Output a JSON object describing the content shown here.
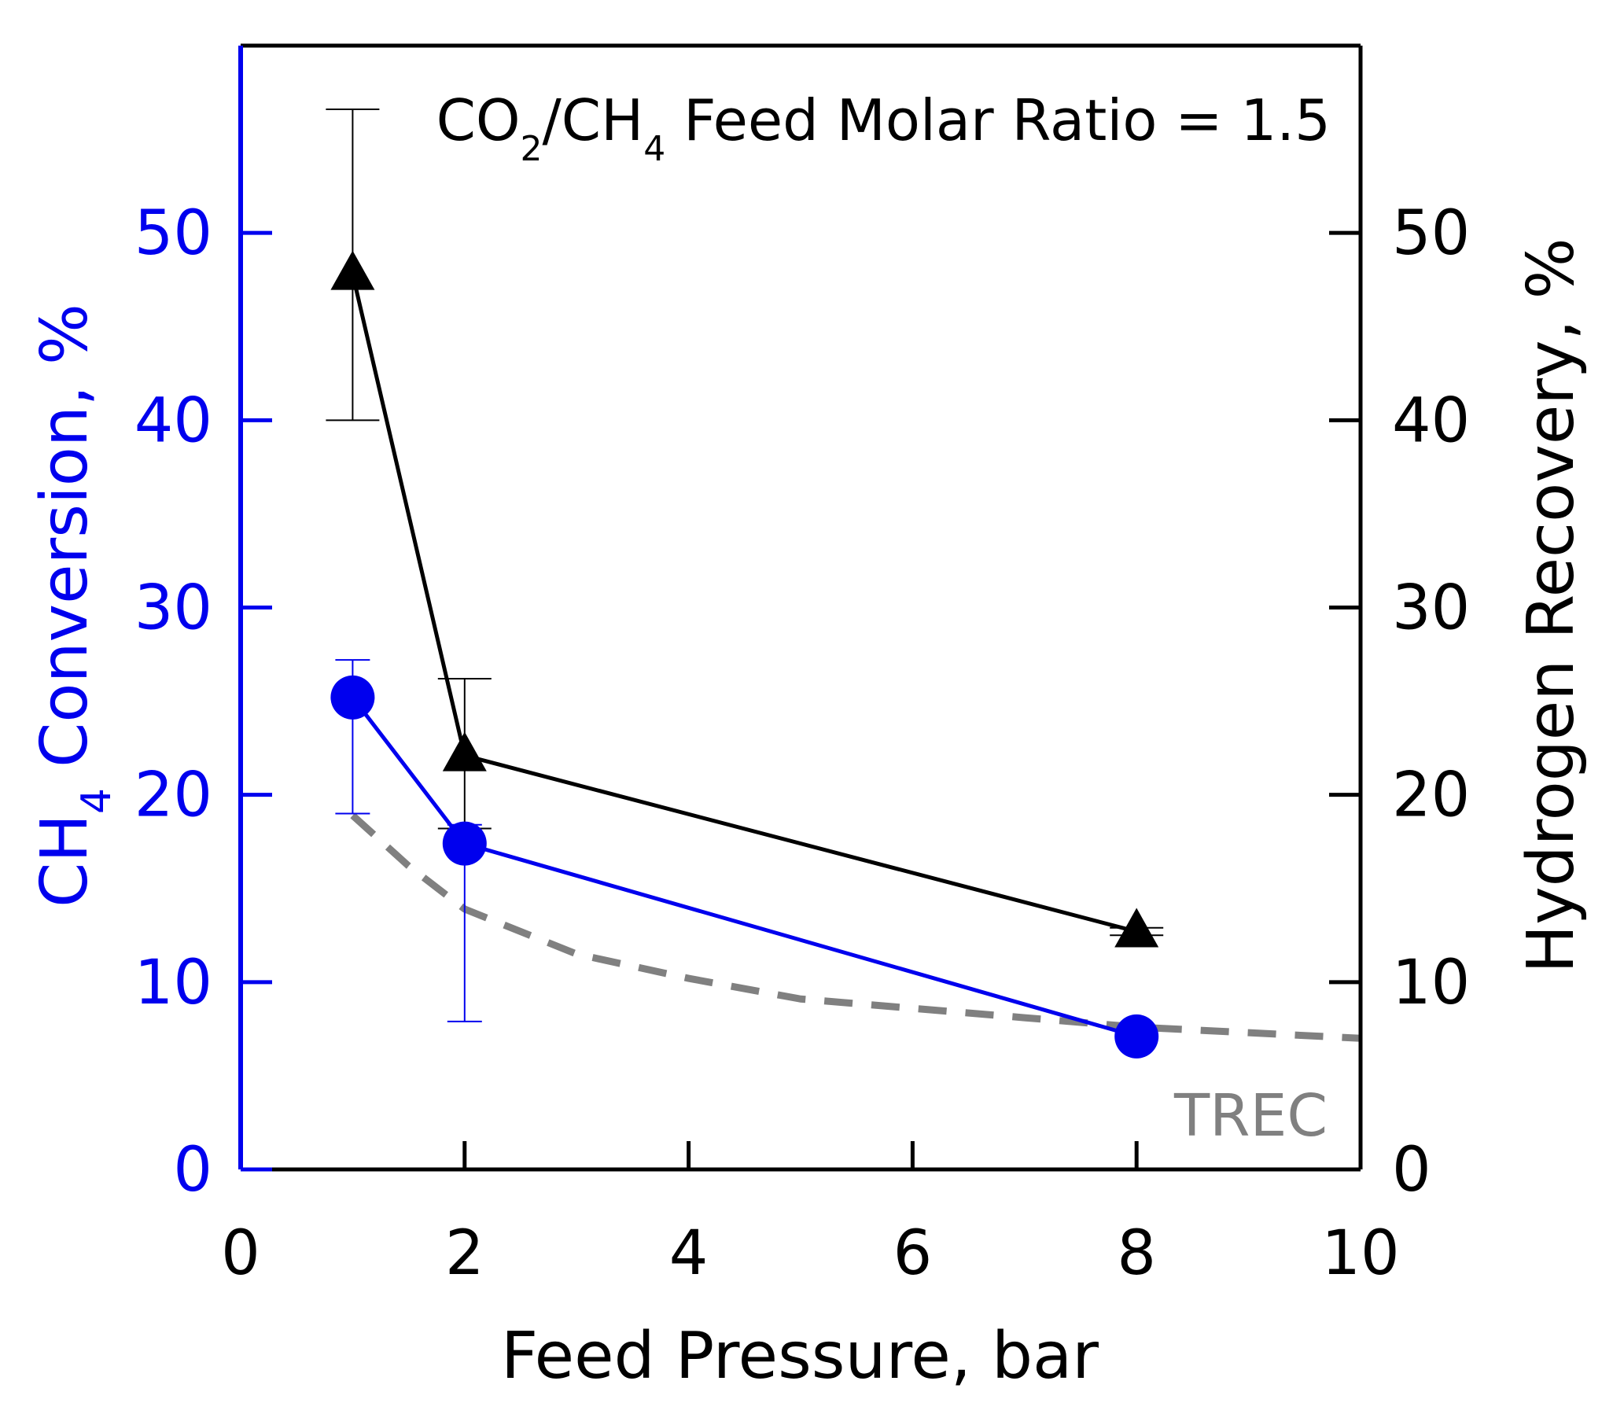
{
  "chart_data": {
    "type": "line",
    "annotation": {
      "prefix": "CO",
      "sub1": "2",
      "mid": "/CH",
      "sub2": "4",
      "suffix": " Feed Molar Ratio = 1.5"
    },
    "xlabel": "Feed Pressure, bar",
    "ylabel_left": {
      "prefix": "CH",
      "sub": "4",
      "suffix": " Conversion, %"
    },
    "ylabel_right": "Hydrogen Recovery, %",
    "xlim": [
      0,
      10
    ],
    "ylim": [
      0,
      60
    ],
    "x_ticks": [
      0,
      2,
      4,
      6,
      8,
      10
    ],
    "y_ticks": [
      0,
      10,
      20,
      30,
      40,
      50
    ],
    "x_tick_labels": [
      "0",
      "2",
      "4",
      "6",
      "8",
      "10"
    ],
    "y_tick_labels": [
      "0",
      "10",
      "20",
      "30",
      "40",
      "50"
    ],
    "colors": {
      "ch4": "#0000ee",
      "h2": "#000000",
      "trec": "#808080",
      "axis_left": "#0000ee"
    },
    "series": [
      {
        "name": "Hydrogen Recovery",
        "axis": "right",
        "marker": "triangle",
        "x": [
          1,
          2,
          8
        ],
        "y": [
          47.8,
          22.1,
          12.7
        ],
        "err_low": [
          40.0,
          18.2,
          12.5
        ],
        "err_high": [
          56.6,
          26.2,
          12.9
        ]
      },
      {
        "name": "CH4 Conversion",
        "axis": "left",
        "marker": "circle",
        "x": [
          1,
          2,
          8
        ],
        "y": [
          25.2,
          17.4,
          7.1
        ],
        "err_low": [
          19.0,
          7.9,
          7.1
        ],
        "err_high": [
          27.2,
          18.4,
          7.1
        ]
      },
      {
        "name": "TREC",
        "axis": "left",
        "style": "dashed",
        "label": "TREC",
        "x": [
          1,
          1.5,
          2,
          3,
          4,
          5,
          6,
          7,
          8,
          9,
          10
        ],
        "y": [
          18.9,
          16.2,
          13.9,
          11.5,
          10.2,
          9.1,
          8.6,
          8.1,
          7.6,
          7.3,
          7.0
        ]
      }
    ]
  }
}
